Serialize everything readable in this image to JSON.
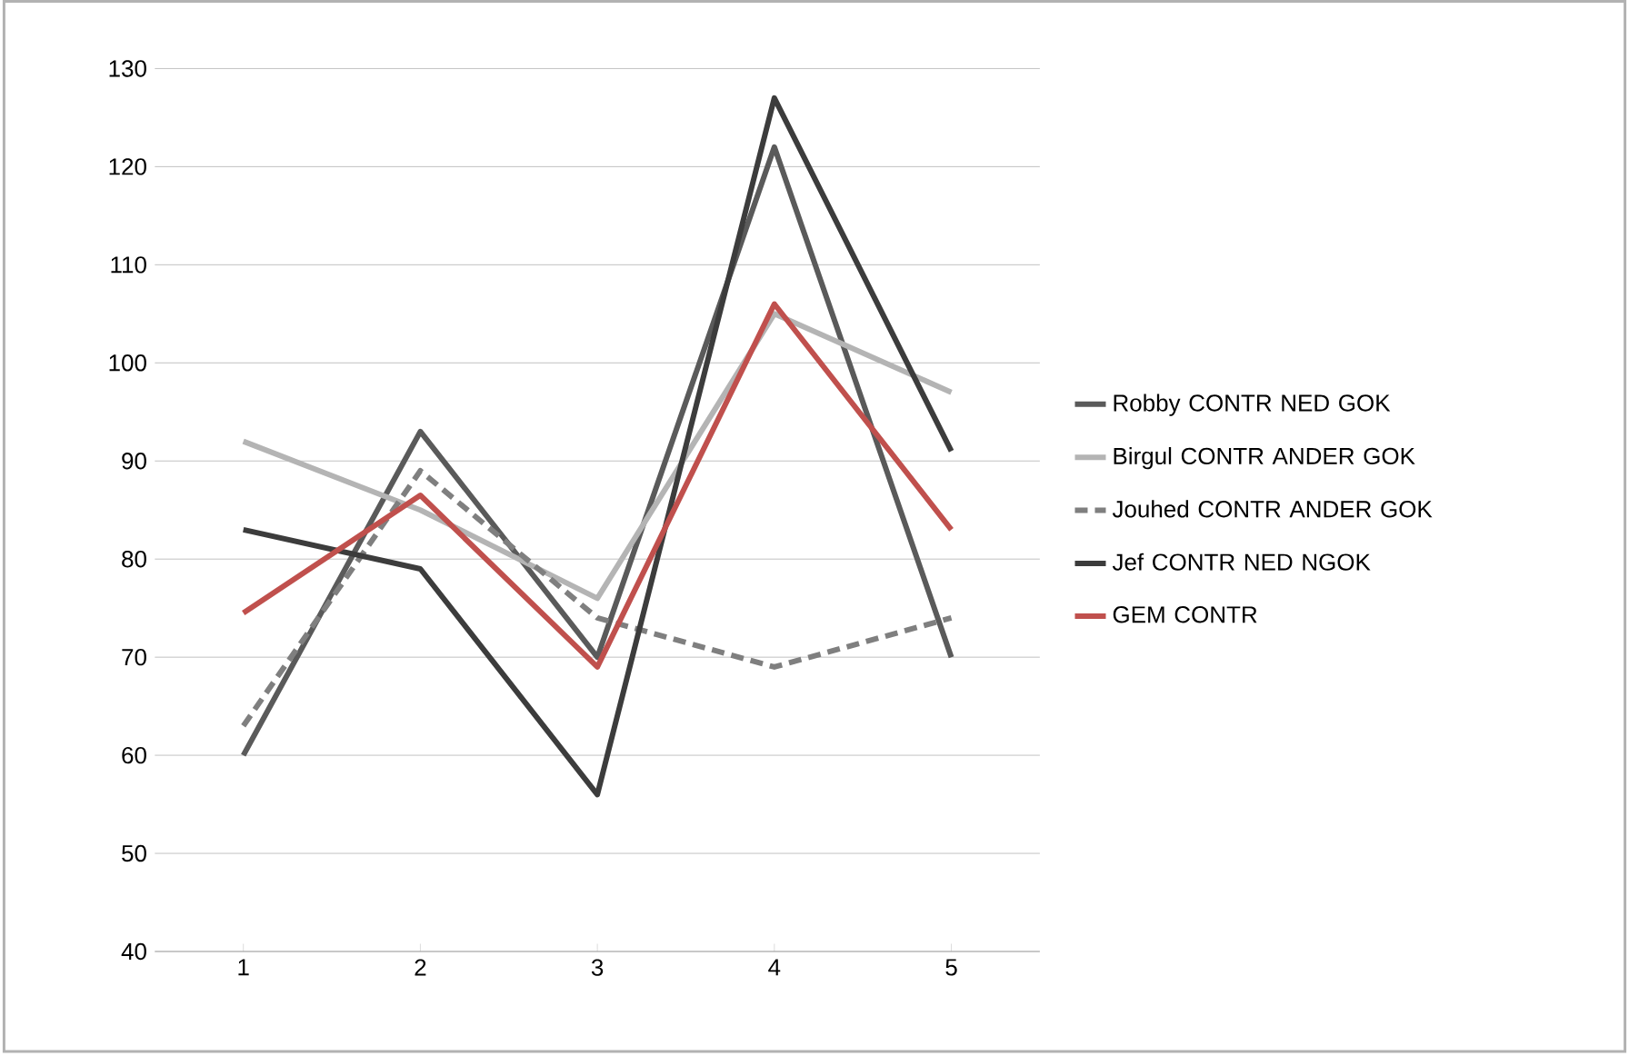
{
  "chart_data": {
    "type": "line",
    "categories": [
      "1",
      "2",
      "3",
      "4",
      "5"
    ],
    "series": [
      {
        "name": "Robby CONTR NED GOK",
        "color": "#5a5a5a",
        "values": [
          60,
          93,
          70,
          122,
          70
        ]
      },
      {
        "name": "Birgul CONTR ANDER GOK",
        "color": "#b4b4b4",
        "values": [
          92,
          85,
          76,
          105,
          97
        ]
      },
      {
        "name": "Jouhed CONTR ANDER GOK",
        "color": "#7f7f7f",
        "values": [
          63,
          89,
          74,
          69,
          74
        ],
        "line_style": "dashed"
      },
      {
        "name": "Jef CONTR NED NGOK",
        "color": "#3c3c3c",
        "values": [
          83,
          79,
          56,
          127,
          91
        ]
      },
      {
        "name": "GEM CONTR",
        "color": "#c0504d",
        "values": [
          74.5,
          86.5,
          69,
          106,
          83
        ]
      }
    ],
    "ylim": [
      40,
      130
    ],
    "yticks": [
      40,
      50,
      60,
      70,
      80,
      90,
      100,
      110,
      120,
      130
    ],
    "grid": "y",
    "legend": "right",
    "marker": "none"
  }
}
